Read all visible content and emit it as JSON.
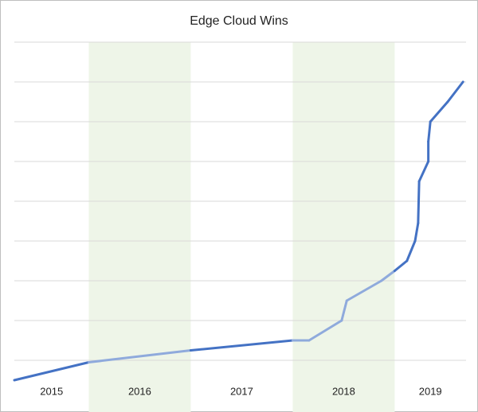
{
  "chart_data": {
    "type": "line",
    "title": "Edge Cloud Wins",
    "x": [
      2015.27,
      2016,
      2017,
      2018,
      2018.16,
      2018.48,
      2018.53,
      2018.87,
      2019,
      2019.12,
      2019.2,
      2019.23,
      2019.24,
      2019.33,
      2019.33,
      2019.35,
      2019.52,
      2019.67
    ],
    "values": [
      0.5,
      0.95,
      1.25,
      1.5,
      1.5,
      2.0,
      2.5,
      3.0,
      3.25,
      3.5,
      4.0,
      4.45,
      5.5,
      6.0,
      6.5,
      7.0,
      7.5,
      8.0
    ],
    "xlim": [
      2015.27,
      2019.7
    ],
    "xticks": [
      2015,
      2016,
      2017,
      2018,
      2019
    ],
    "ylim": [
      0,
      9
    ],
    "yticks": [
      1,
      2,
      3,
      4,
      5,
      6,
      7,
      8,
      9
    ],
    "grid": true,
    "colors": [
      "#4472c4",
      "#8faadc"
    ],
    "band_color": "#eef5e8"
  }
}
